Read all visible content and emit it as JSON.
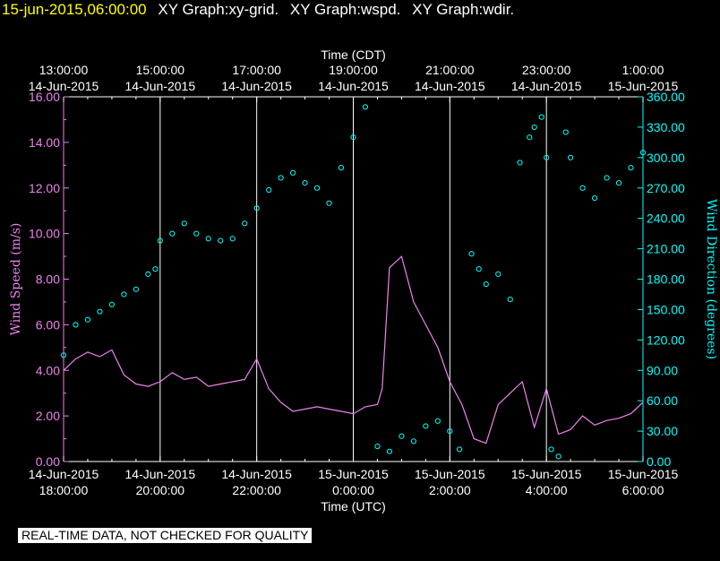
{
  "header": {
    "timestamp": "15-jun-2015,06:00:00",
    "titles": [
      "XY Graph:xy-grid.",
      "XY Graph:wspd.",
      "XY Graph:wdir."
    ]
  },
  "disclaimer": "REAL-TIME DATA, NOT CHECKED FOR QUALITY",
  "colors": {
    "background": "#000000",
    "grid": "#ffffff",
    "wind_speed": "#ee82ee",
    "wind_dir": "#00ffff",
    "header_time": "#ffff00"
  },
  "chart_data": {
    "type": "line",
    "top_axis": {
      "title": "Time (CDT)",
      "ticks": [
        {
          "t": 0,
          "time": "13:00:00",
          "date": "14-Jun-2015"
        },
        {
          "t": 2,
          "time": "15:00:00",
          "date": "14-Jun-2015"
        },
        {
          "t": 4,
          "time": "17:00:00",
          "date": "14-Jun-2015"
        },
        {
          "t": 6,
          "time": "19:00:00",
          "date": "14-Jun-2015"
        },
        {
          "t": 8,
          "time": "21:00:00",
          "date": "14-Jun-2015"
        },
        {
          "t": 10,
          "time": "23:00:00",
          "date": "14-Jun-2015"
        },
        {
          "t": 12,
          "time": "1:00:00",
          "date": "15-Jun-2015"
        }
      ]
    },
    "bottom_axis": {
      "title": "Time (UTC)",
      "ticks": [
        {
          "t": 0,
          "date": "14-Jun-2015",
          "time": "18:00:00"
        },
        {
          "t": 2,
          "date": "14-Jun-2015",
          "time": "20:00:00"
        },
        {
          "t": 4,
          "date": "14-Jun-2015",
          "time": "22:00:00"
        },
        {
          "t": 6,
          "date": "15-Jun-2015",
          "time": "0:00:00"
        },
        {
          "t": 8,
          "date": "15-Jun-2015",
          "time": "2:00:00"
        },
        {
          "t": 10,
          "date": "15-Jun-2015",
          "time": "4:00:00"
        },
        {
          "t": 12,
          "date": "15-Jun-2015",
          "time": "6:00:00"
        }
      ]
    },
    "xlim": [
      0,
      12
    ],
    "left_axis": {
      "label": "Wind Speed (m/s)",
      "ylim": [
        0,
        16
      ],
      "ticks": [
        "0.00",
        "2.00",
        "4.00",
        "6.00",
        "8.00",
        "10.00",
        "12.00",
        "14.00",
        "16.00"
      ]
    },
    "right_axis": {
      "label": "Wind Direction (degrees)",
      "ylim": [
        0,
        360
      ],
      "ticks": [
        "0.00",
        "30.00",
        "60.00",
        "90.00",
        "120.00",
        "150.00",
        "180.00",
        "210.00",
        "240.00",
        "270.00",
        "300.00",
        "330.00",
        "360.00"
      ]
    },
    "grid": "vertical lines at major time ticks",
    "series": [
      {
        "name": "wspd",
        "style": "line",
        "axis": "left",
        "x": [
          0,
          0.25,
          0.5,
          0.75,
          1.0,
          1.25,
          1.5,
          1.75,
          2.0,
          2.25,
          2.5,
          2.75,
          3.0,
          3.25,
          3.5,
          3.75,
          4.0,
          4.25,
          4.5,
          4.75,
          5.0,
          5.25,
          5.5,
          5.75,
          6.0,
          6.25,
          6.5,
          6.6,
          6.75,
          7.0,
          7.25,
          7.5,
          7.75,
          8.0,
          8.25,
          8.5,
          8.75,
          9.0,
          9.25,
          9.5,
          9.75,
          10.0,
          10.25,
          10.5,
          10.75,
          11.0,
          11.25,
          11.5,
          11.75,
          12.0
        ],
        "y": [
          4.0,
          4.5,
          4.8,
          4.6,
          4.9,
          3.8,
          3.4,
          3.3,
          3.5,
          3.9,
          3.6,
          3.7,
          3.3,
          3.4,
          3.5,
          3.6,
          4.5,
          3.2,
          2.6,
          2.2,
          2.3,
          2.4,
          2.3,
          2.2,
          2.1,
          2.4,
          2.5,
          3.2,
          8.5,
          9.0,
          7.0,
          6.0,
          5.0,
          3.5,
          2.5,
          1.0,
          0.8,
          2.5,
          3.0,
          3.5,
          1.5,
          3.2,
          1.2,
          1.4,
          2.0,
          1.6,
          1.8,
          1.9,
          2.1,
          2.6
        ]
      },
      {
        "name": "wdir",
        "style": "scatter",
        "axis": "right",
        "x": [
          0,
          0.25,
          0.5,
          0.75,
          1.0,
          1.25,
          1.5,
          1.75,
          1.9,
          2.0,
          2.25,
          2.5,
          2.75,
          3.0,
          3.25,
          3.5,
          3.75,
          4.0,
          4.25,
          4.5,
          4.75,
          5.0,
          5.25,
          5.5,
          5.75,
          6.0,
          6.25,
          6.5,
          6.75,
          7.0,
          7.25,
          7.5,
          7.75,
          8.0,
          8.2,
          8.45,
          8.6,
          8.75,
          9.0,
          9.25,
          9.45,
          9.65,
          9.75,
          9.9,
          10.0,
          10.1,
          10.25,
          10.4,
          10.5,
          10.75,
          11.0,
          11.25,
          11.5,
          11.75,
          12.0
        ],
        "y": [
          105,
          135,
          140,
          148,
          155,
          165,
          170,
          185,
          190,
          218,
          225,
          235,
          225,
          220,
          218,
          220,
          235,
          250,
          268,
          280,
          285,
          275,
          270,
          255,
          290,
          320,
          350,
          15,
          10,
          25,
          20,
          35,
          40,
          30,
          12,
          205,
          190,
          175,
          185,
          160,
          295,
          320,
          330,
          340,
          300,
          12,
          5,
          325,
          300,
          270,
          260,
          280,
          275,
          290,
          305
        ]
      }
    ]
  }
}
